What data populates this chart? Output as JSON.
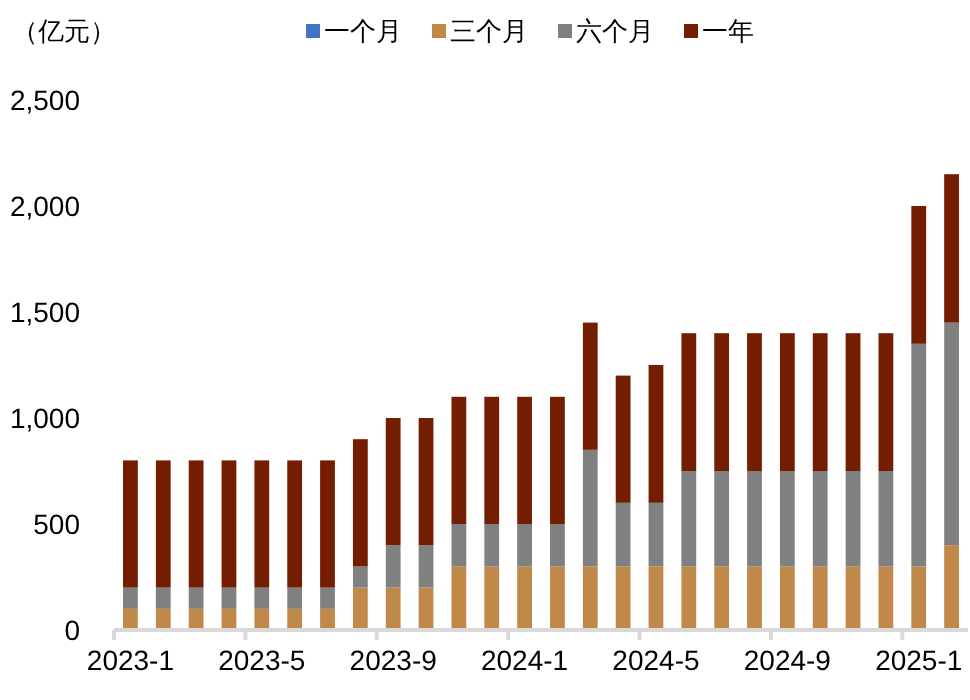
{
  "chart_data": {
    "type": "bar",
    "stacked": true,
    "ylabel": "（亿元）",
    "legend": "top",
    "categories": [
      "2023-1",
      null,
      null,
      null,
      "2023-5",
      null,
      null,
      null,
      "2023-9",
      null,
      null,
      null,
      "2024-1",
      null,
      null,
      null,
      "2024-5",
      null,
      null,
      null,
      "2024-9",
      null,
      null,
      null,
      "2025-1",
      null
    ],
    "series": [
      {
        "name": "一个月",
        "color": "#4472c4",
        "values": [
          0,
          0,
          0,
          0,
          0,
          0,
          0,
          0,
          0,
          0,
          0,
          0,
          0,
          0,
          0,
          0,
          0,
          0,
          0,
          0,
          0,
          0,
          0,
          0,
          0,
          0
        ]
      },
      {
        "name": "三个月",
        "color": "#c0894a",
        "values": [
          100,
          100,
          100,
          100,
          100,
          100,
          100,
          200,
          200,
          200,
          300,
          300,
          300,
          300,
          300,
          300,
          300,
          300,
          300,
          300,
          300,
          300,
          300,
          300,
          300,
          400
        ]
      },
      {
        "name": "六个月",
        "color": "#808080",
        "values": [
          100,
          100,
          100,
          100,
          100,
          100,
          100,
          100,
          200,
          200,
          200,
          200,
          200,
          200,
          550,
          300,
          300,
          450,
          450,
          450,
          450,
          450,
          450,
          450,
          1050,
          1050
        ]
      },
      {
        "name": "一年",
        "color": "#731e00",
        "values": [
          600,
          600,
          600,
          600,
          600,
          600,
          600,
          600,
          600,
          600,
          600,
          600,
          600,
          600,
          600,
          600,
          650,
          650,
          650,
          650,
          650,
          650,
          650,
          650,
          650,
          700
        ]
      }
    ],
    "ylim": [
      0,
      2500
    ],
    "yticks": [
      0,
      500,
      {
        "value": 1000,
        "label": "1,000"
      },
      {
        "value": 1500,
        "label": "1,500"
      },
      {
        "value": 2000,
        "label": "2,000"
      },
      {
        "value": 2500,
        "label": "2,500"
      }
    ]
  }
}
